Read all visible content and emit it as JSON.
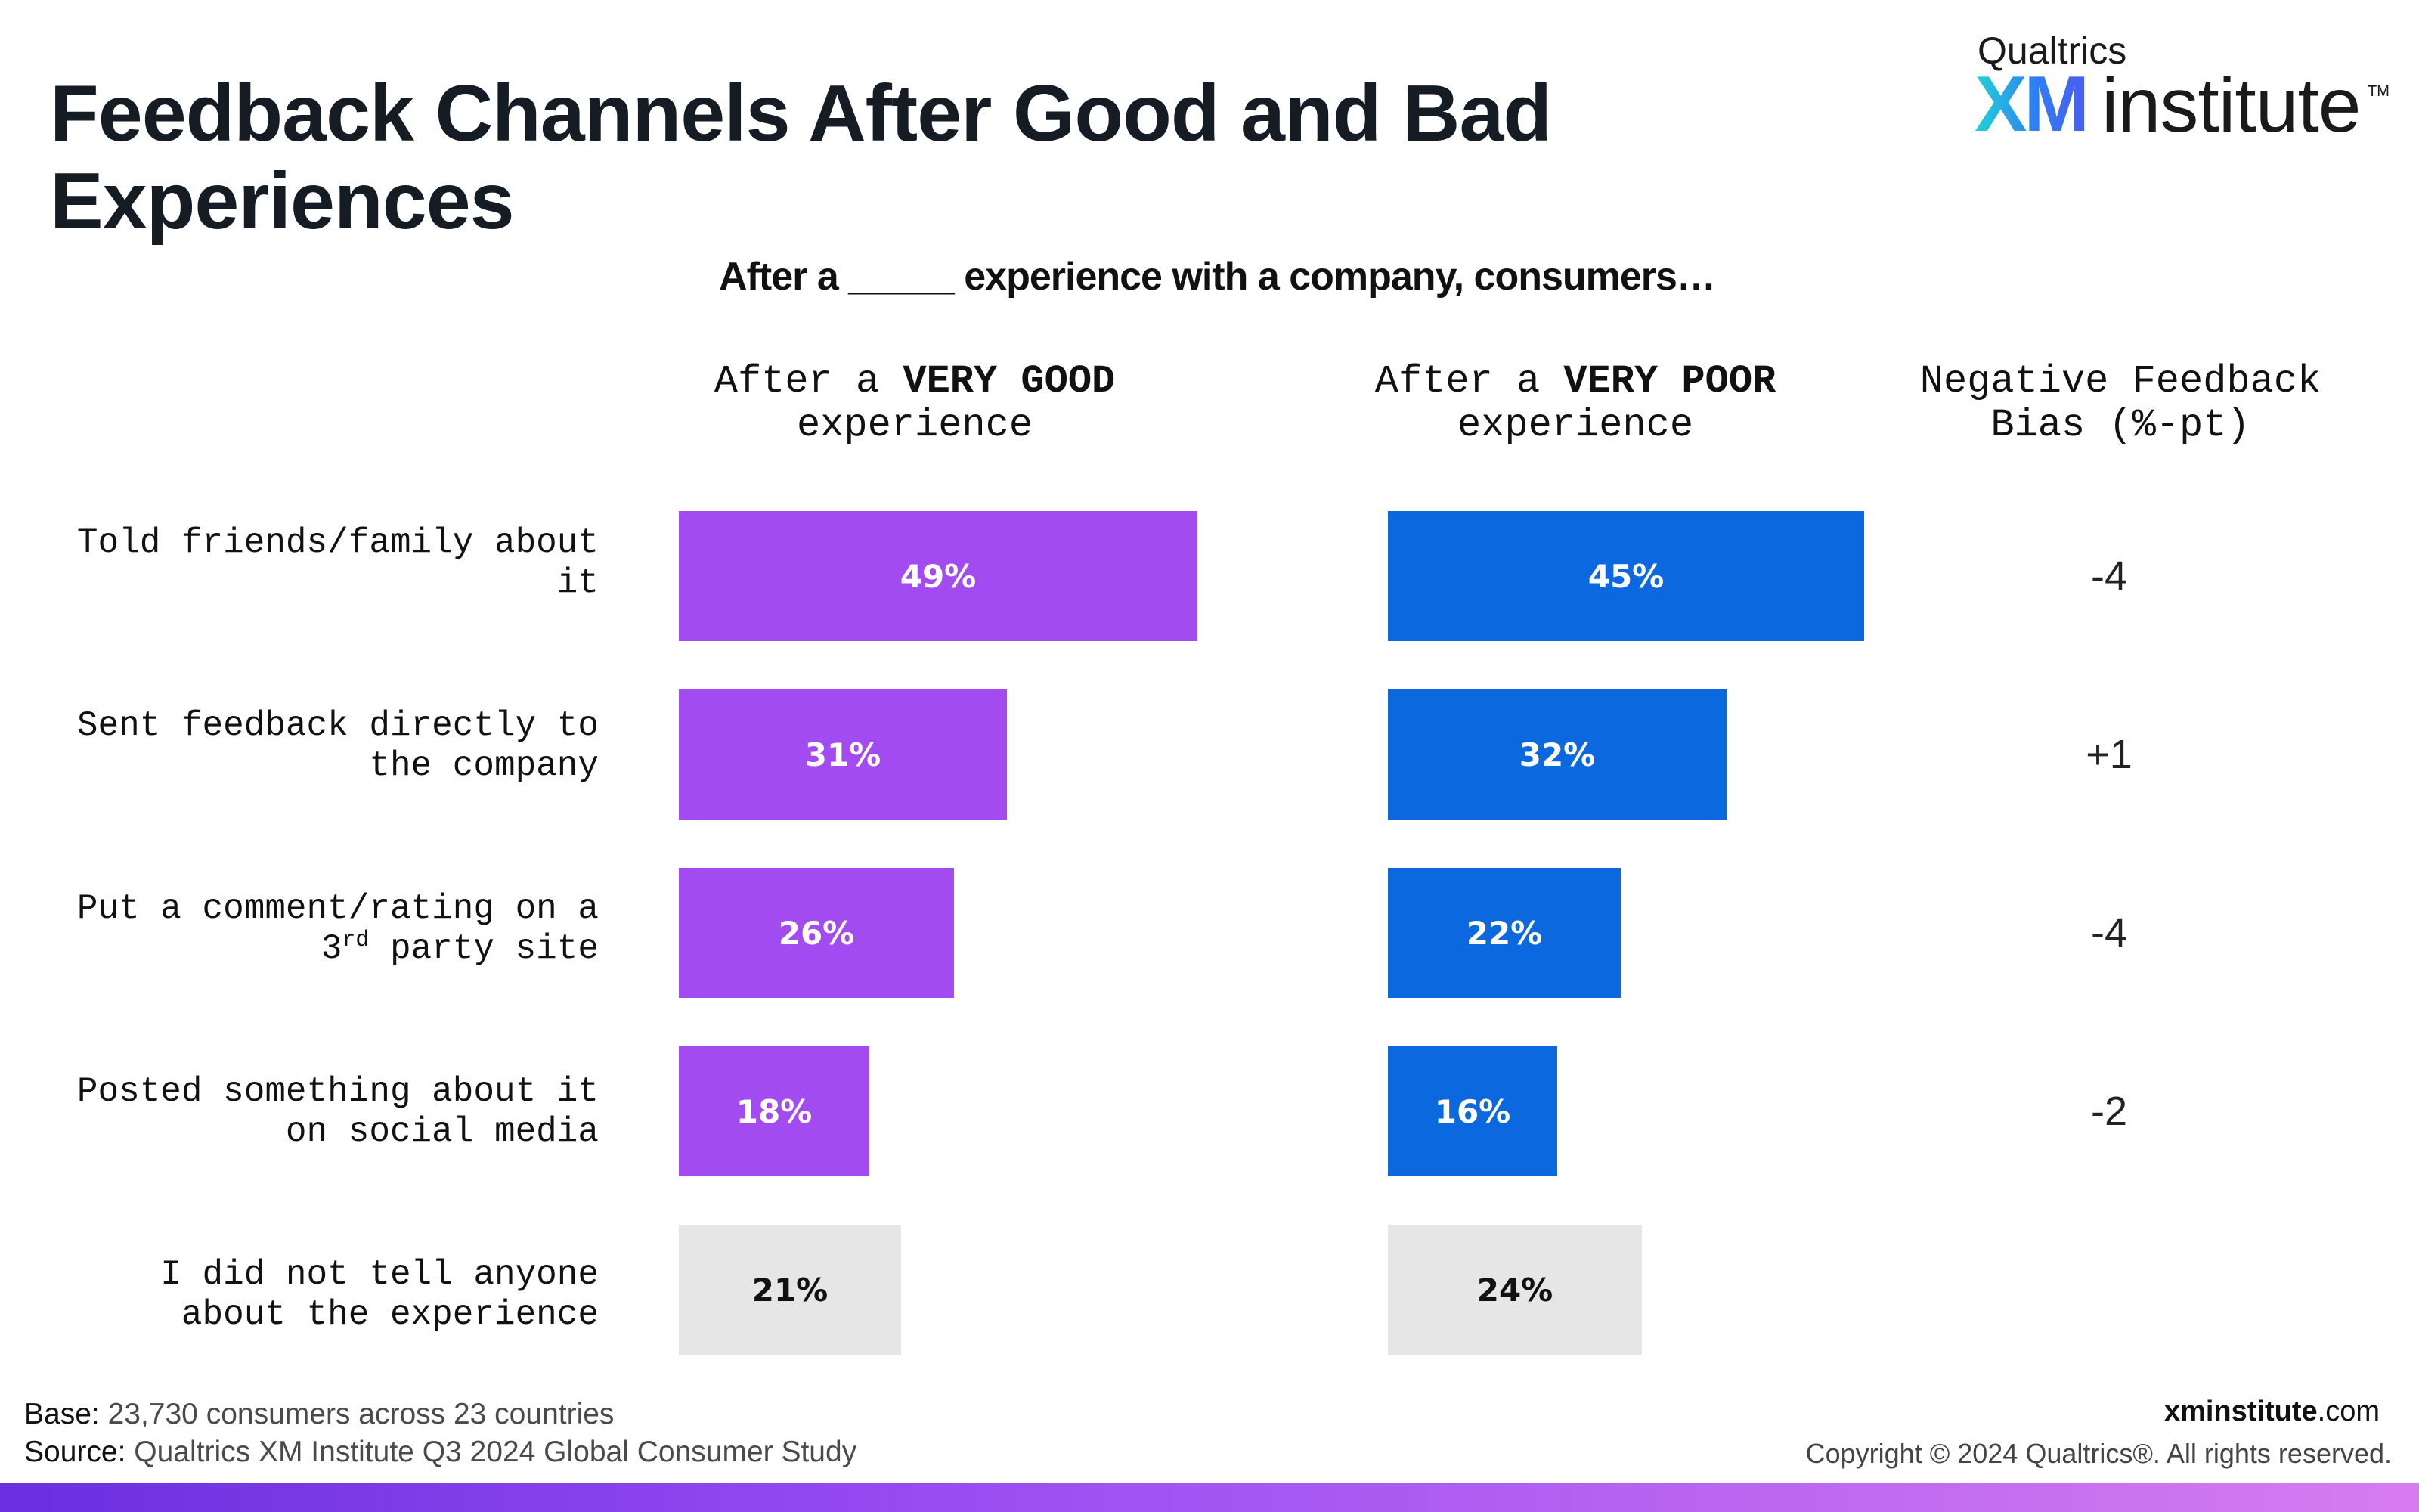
{
  "header": {
    "title_line1": "Feedback Channels After Good and Bad",
    "title_line2": "Experiences",
    "subtitle": "After a _____ experience with a company, consumers…"
  },
  "logo": {
    "small_text": "Qualtrics",
    "xm": "XM",
    "institute": "institute",
    "tm": "TM"
  },
  "columns": {
    "good": {
      "prefix": "After a ",
      "emph": "VERY GOOD",
      "suffix": "experience"
    },
    "poor": {
      "prefix": "After a ",
      "emph": "VERY POOR",
      "suffix": "experience"
    },
    "bias_line1": "Negative Feedback",
    "bias_line2": "Bias (%-pt)"
  },
  "rows": [
    {
      "line1": "Told friends/family about",
      "line2": "it"
    },
    {
      "line1": "Sent feedback directly to",
      "line2": "the company"
    },
    {
      "line1": "Put a comment/rating on a",
      "line2_pre": "3",
      "line2_sup": "rd",
      "line2_post": " party site"
    },
    {
      "line1": "Posted something about it",
      "line2": "on social media"
    },
    {
      "line1": "I did not tell anyone",
      "line2": "about the experience"
    }
  ],
  "chart_data": {
    "type": "bar",
    "orientation": "horizontal",
    "categories": [
      "Told friends/family about it",
      "Sent feedback directly to the company",
      "Put a comment/rating on a 3rd party site",
      "Posted something about it on social media",
      "I did not tell anyone about the experience"
    ],
    "series": [
      {
        "name": "After a VERY GOOD experience",
        "values": [
          49,
          31,
          26,
          18,
          21
        ],
        "labels": [
          "49%",
          "31%",
          "26%",
          "18%",
          "21%"
        ],
        "colors": [
          "#a24bf0",
          "#a24bf0",
          "#a24bf0",
          "#a24bf0",
          "#e6e6e6"
        ],
        "label_colors": [
          "#ffffff",
          "#ffffff",
          "#ffffff",
          "#ffffff",
          "#111111"
        ]
      },
      {
        "name": "After a VERY POOR experience",
        "values": [
          45,
          32,
          22,
          16,
          24
        ],
        "labels": [
          "45%",
          "32%",
          "22%",
          "16%",
          "24%"
        ],
        "colors": [
          "#0b68de",
          "#0b68de",
          "#0b68de",
          "#0b68de",
          "#e6e6e6"
        ],
        "label_colors": [
          "#ffffff",
          "#ffffff",
          "#ffffff",
          "#ffffff",
          "#111111"
        ]
      }
    ],
    "negative_feedback_bias": [
      "-4",
      "+1",
      "-4",
      "-2",
      ""
    ],
    "xlim": [
      0,
      49
    ],
    "grid": false
  },
  "footer": {
    "base_key": "Base:",
    "base_val": "23,730 consumers across 23 countries",
    "source_key": "Source:",
    "source_val": "Qualtrics XM Institute Q3 2024 Global Consumer Study",
    "site_bold": "xminstitute",
    "site_rest": ".com",
    "copyright": "Copyright © 2024 Qualtrics®. All rights reserved."
  },
  "colors": {
    "good": "#a24bf0",
    "poor": "#0b68de",
    "neutral": "#e6e6e6",
    "title": "#151c24"
  }
}
